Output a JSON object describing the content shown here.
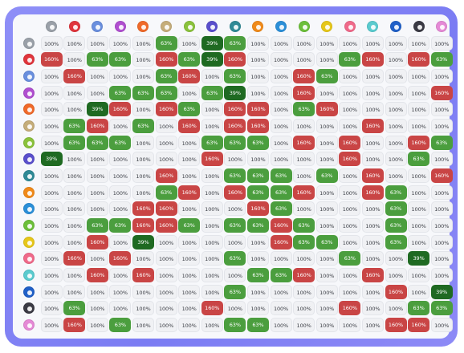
{
  "icons": [
    {
      "name": "gray-icon",
      "color": "#9aa0a8"
    },
    {
      "name": "red-icon",
      "color": "#e0353c"
    },
    {
      "name": "blue-icon",
      "color": "#6a8fde"
    },
    {
      "name": "purple-icon",
      "color": "#b04fd0"
    },
    {
      "name": "orange-icon",
      "color": "#f06a2a"
    },
    {
      "name": "tan-icon",
      "color": "#c5ad7a"
    },
    {
      "name": "lime-icon",
      "color": "#8ac23c"
    },
    {
      "name": "indigo-icon",
      "color": "#5a4fcc"
    },
    {
      "name": "teal-icon",
      "color": "#2f8a96"
    },
    {
      "name": "flame-icon",
      "color": "#f08a1a"
    },
    {
      "name": "drop-icon",
      "color": "#2b8fd8"
    },
    {
      "name": "leaf-icon",
      "color": "#6cbf3a"
    },
    {
      "name": "bolt-icon",
      "color": "#e6c71a"
    },
    {
      "name": "pink-icon",
      "color": "#f06a8a"
    },
    {
      "name": "snowflake-icon",
      "color": "#5acbcf"
    },
    {
      "name": "swirl-icon",
      "color": "#2060c8"
    },
    {
      "name": "dark-icon",
      "color": "#3a3a44"
    },
    {
      "name": "star-icon",
      "color": "#e58ad6"
    }
  ],
  "rows": [
    [
      "100%",
      "100%",
      "100%",
      "100%",
      "100%",
      "63%",
      "100%",
      "39%",
      "63%",
      "100%",
      "100%",
      "100%",
      "100%",
      "100%",
      "100%",
      "100%",
      "100%",
      "100%"
    ],
    [
      "160%",
      "100%",
      "63%",
      "63%",
      "100%",
      "160%",
      "63%",
      "39%",
      "160%",
      "100%",
      "100%",
      "100%",
      "100%",
      "63%",
      "160%",
      "100%",
      "160%",
      "63%"
    ],
    [
      "100%",
      "160%",
      "100%",
      "100%",
      "100%",
      "63%",
      "160%",
      "100%",
      "63%",
      "100%",
      "100%",
      "160%",
      "63%",
      "100%",
      "100%",
      "100%",
      "100%",
      "100%"
    ],
    [
      "100%",
      "100%",
      "100%",
      "63%",
      "63%",
      "63%",
      "100%",
      "63%",
      "39%",
      "100%",
      "100%",
      "160%",
      "100%",
      "100%",
      "100%",
      "100%",
      "100%",
      "160%"
    ],
    [
      "100%",
      "100%",
      "39%",
      "160%",
      "100%",
      "160%",
      "63%",
      "100%",
      "160%",
      "160%",
      "100%",
      "63%",
      "160%",
      "100%",
      "100%",
      "100%",
      "100%",
      "100%"
    ],
    [
      "100%",
      "63%",
      "160%",
      "100%",
      "63%",
      "100%",
      "160%",
      "100%",
      "160%",
      "160%",
      "100%",
      "100%",
      "100%",
      "100%",
      "160%",
      "100%",
      "100%",
      "100%"
    ],
    [
      "100%",
      "63%",
      "63%",
      "63%",
      "100%",
      "100%",
      "100%",
      "63%",
      "63%",
      "63%",
      "100%",
      "160%",
      "100%",
      "160%",
      "100%",
      "100%",
      "160%",
      "63%"
    ],
    [
      "39%",
      "100%",
      "100%",
      "100%",
      "100%",
      "100%",
      "100%",
      "160%",
      "100%",
      "100%",
      "100%",
      "100%",
      "100%",
      "160%",
      "100%",
      "100%",
      "63%",
      "100%"
    ],
    [
      "100%",
      "100%",
      "100%",
      "100%",
      "100%",
      "160%",
      "100%",
      "100%",
      "63%",
      "63%",
      "63%",
      "100%",
      "63%",
      "100%",
      "160%",
      "100%",
      "100%",
      "160%"
    ],
    [
      "100%",
      "100%",
      "100%",
      "100%",
      "100%",
      "63%",
      "160%",
      "100%",
      "160%",
      "63%",
      "63%",
      "160%",
      "100%",
      "100%",
      "160%",
      "63%",
      "100%",
      "100%"
    ],
    [
      "100%",
      "100%",
      "100%",
      "100%",
      "160%",
      "160%",
      "100%",
      "100%",
      "100%",
      "160%",
      "63%",
      "100%",
      "100%",
      "100%",
      "100%",
      "63%",
      "100%",
      "100%"
    ],
    [
      "100%",
      "100%",
      "63%",
      "63%",
      "160%",
      "160%",
      "63%",
      "100%",
      "63%",
      "63%",
      "160%",
      "63%",
      "100%",
      "100%",
      "100%",
      "63%",
      "100%",
      "100%"
    ],
    [
      "100%",
      "100%",
      "160%",
      "100%",
      "39%",
      "100%",
      "100%",
      "100%",
      "100%",
      "100%",
      "160%",
      "63%",
      "63%",
      "100%",
      "100%",
      "63%",
      "100%",
      "100%"
    ],
    [
      "100%",
      "160%",
      "100%",
      "160%",
      "100%",
      "100%",
      "100%",
      "100%",
      "63%",
      "100%",
      "100%",
      "100%",
      "100%",
      "63%",
      "100%",
      "100%",
      "39%",
      "100%"
    ],
    [
      "100%",
      "100%",
      "160%",
      "100%",
      "160%",
      "100%",
      "100%",
      "100%",
      "100%",
      "63%",
      "63%",
      "160%",
      "100%",
      "100%",
      "160%",
      "100%",
      "100%",
      "100%"
    ],
    [
      "100%",
      "100%",
      "100%",
      "100%",
      "100%",
      "100%",
      "100%",
      "100%",
      "63%",
      "100%",
      "100%",
      "100%",
      "100%",
      "100%",
      "100%",
      "160%",
      "100%",
      "39%"
    ],
    [
      "100%",
      "63%",
      "100%",
      "100%",
      "100%",
      "100%",
      "100%",
      "160%",
      "100%",
      "100%",
      "100%",
      "100%",
      "100%",
      "160%",
      "100%",
      "100%",
      "63%",
      "63%"
    ],
    [
      "100%",
      "160%",
      "100%",
      "63%",
      "100%",
      "100%",
      "100%",
      "100%",
      "63%",
      "63%",
      "100%",
      "100%",
      "100%",
      "100%",
      "100%",
      "160%",
      "160%",
      "100%"
    ]
  ]
}
